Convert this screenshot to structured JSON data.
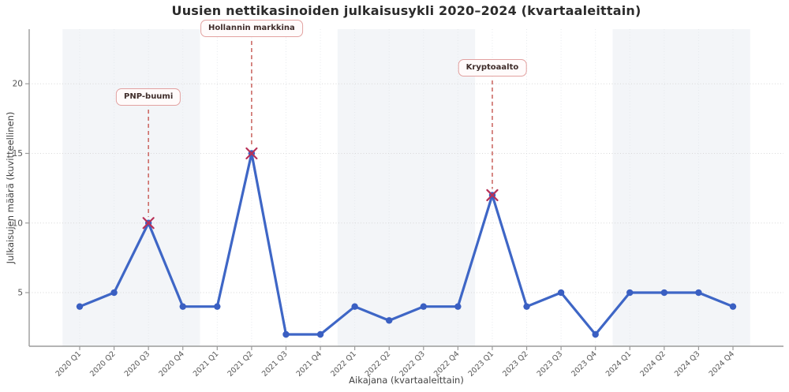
{
  "chart_data": {
    "type": "line",
    "title": "Uusien nettikasinoiden julkaisusykli 2020–2024 (kvartaaleittain)",
    "xlabel": "Aikajana (kvartaaleittain)",
    "ylabel": "Julkaisujen määrä (kuvitteellinen)",
    "categories": [
      "2020 Q1",
      "2020 Q2",
      "2020 Q3",
      "2020 Q4",
      "2021 Q1",
      "2021 Q2",
      "2021 Q3",
      "2021 Q4",
      "2022 Q1",
      "2022 Q2",
      "2022 Q3",
      "2022 Q4",
      "2023 Q1",
      "2023 Q2",
      "2023 Q3",
      "2023 Q4",
      "2024 Q1",
      "2024 Q2",
      "2024 Q3",
      "2024 Q4"
    ],
    "values": [
      4,
      5,
      10,
      4,
      4,
      15,
      2,
      2,
      4,
      3,
      4,
      4,
      12,
      4,
      5,
      2,
      5,
      5,
      5,
      4
    ],
    "yticks": [
      5,
      10,
      15,
      20
    ],
    "ylim": [
      1.15,
      23.92
    ],
    "grid": true,
    "legend_position": "none",
    "year_bands": [
      "2020",
      "2022",
      "2024"
    ],
    "annotations": [
      {
        "label": "PNP-buumi",
        "category": "2020 Q3",
        "value": 10,
        "box_top": 112
      },
      {
        "label": "Hollannin markkina",
        "category": "2021 Q2",
        "value": 15,
        "box_top": 25
      },
      {
        "label": "Kryptoaalto",
        "category": "2023 Q1",
        "value": 12,
        "box_top": 75
      }
    ],
    "colors": {
      "line": "#3e66c6",
      "marker": "#3a5fc2",
      "peak_marker": "#b83057",
      "annotation_dash": "#cc6a66",
      "annotation_border": "#e2a1a0",
      "annotation_bg": "#fffbfb",
      "annotation_text": "#3f2d2b",
      "band": "#f3f5f8",
      "grid_h": "#d8d8d8",
      "grid_v": "#e6e9ed",
      "axis": "#9b9b9b",
      "tick_text": "#555555"
    }
  }
}
